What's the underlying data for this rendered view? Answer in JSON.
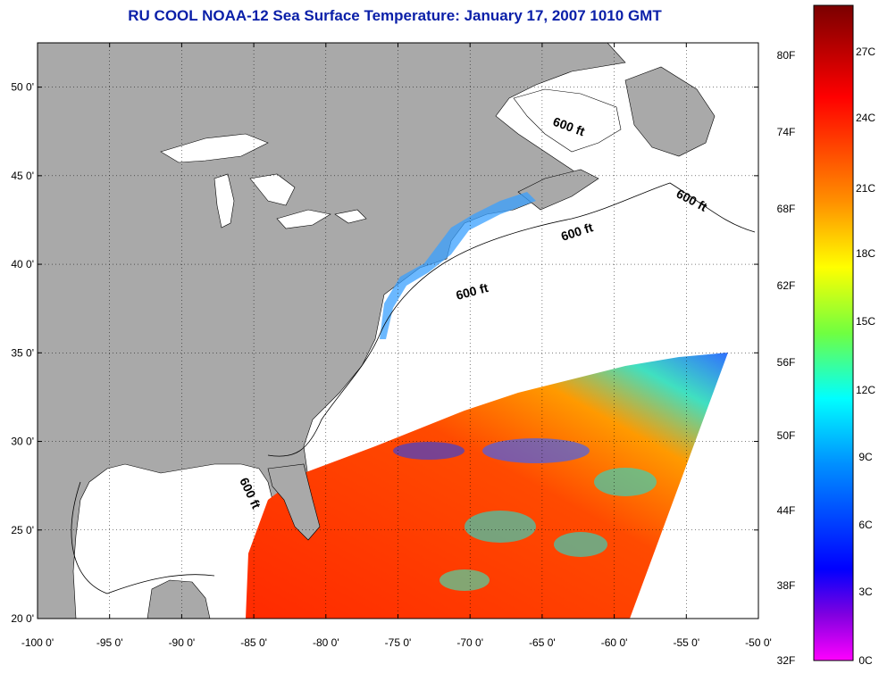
{
  "title": "RU COOL  NOAA-12  Sea Surface Temperature:  January 17, 2007 1010 GMT",
  "map": {
    "lon_range": [
      -100,
      -50
    ],
    "lat_range": [
      20,
      52.5
    ],
    "x_ticks": [
      {
        "value": -100,
        "label": "-100 0'"
      },
      {
        "value": -95,
        "label": "-95 0'"
      },
      {
        "value": -90,
        "label": "-90 0'"
      },
      {
        "value": -85,
        "label": "-85 0'"
      },
      {
        "value": -80,
        "label": "-80 0'"
      },
      {
        "value": -75,
        "label": "-75 0'"
      },
      {
        "value": -70,
        "label": "-70 0'"
      },
      {
        "value": -65,
        "label": "-65 0'"
      },
      {
        "value": -60,
        "label": "-60 0'"
      },
      {
        "value": -55,
        "label": "-55 0'"
      },
      {
        "value": -50,
        "label": "-50 0'"
      }
    ],
    "y_ticks": [
      {
        "value": 20,
        "label": "20 0'"
      },
      {
        "value": 25,
        "label": "25 0'"
      },
      {
        "value": 30,
        "label": "30 0'"
      },
      {
        "value": 35,
        "label": "35 0'"
      },
      {
        "value": 40,
        "label": "40 0'"
      },
      {
        "value": 45,
        "label": "45 0'"
      },
      {
        "value": 50,
        "label": "50 0'"
      }
    ],
    "grid": "dotted",
    "depth_contour_label": "600 ft",
    "colors": {
      "land": "#a9a9a9",
      "no_data": "#ffffff"
    }
  },
  "colorbar": {
    "f_labels": [
      "80F",
      "74F",
      "68F",
      "62F",
      "56F",
      "50F",
      "44F",
      "38F",
      "32F"
    ],
    "c_labels": [
      "27C",
      "24C",
      "21C",
      "18C",
      "15C",
      "12C",
      "9C",
      "6C",
      "3C",
      "0C"
    ],
    "stops": [
      "#800000",
      "#ff0000",
      "#ff8000",
      "#ffff00",
      "#80ff40",
      "#00ffff",
      "#0080ff",
      "#0000ff",
      "#8000ff",
      "#ff00ff"
    ]
  }
}
